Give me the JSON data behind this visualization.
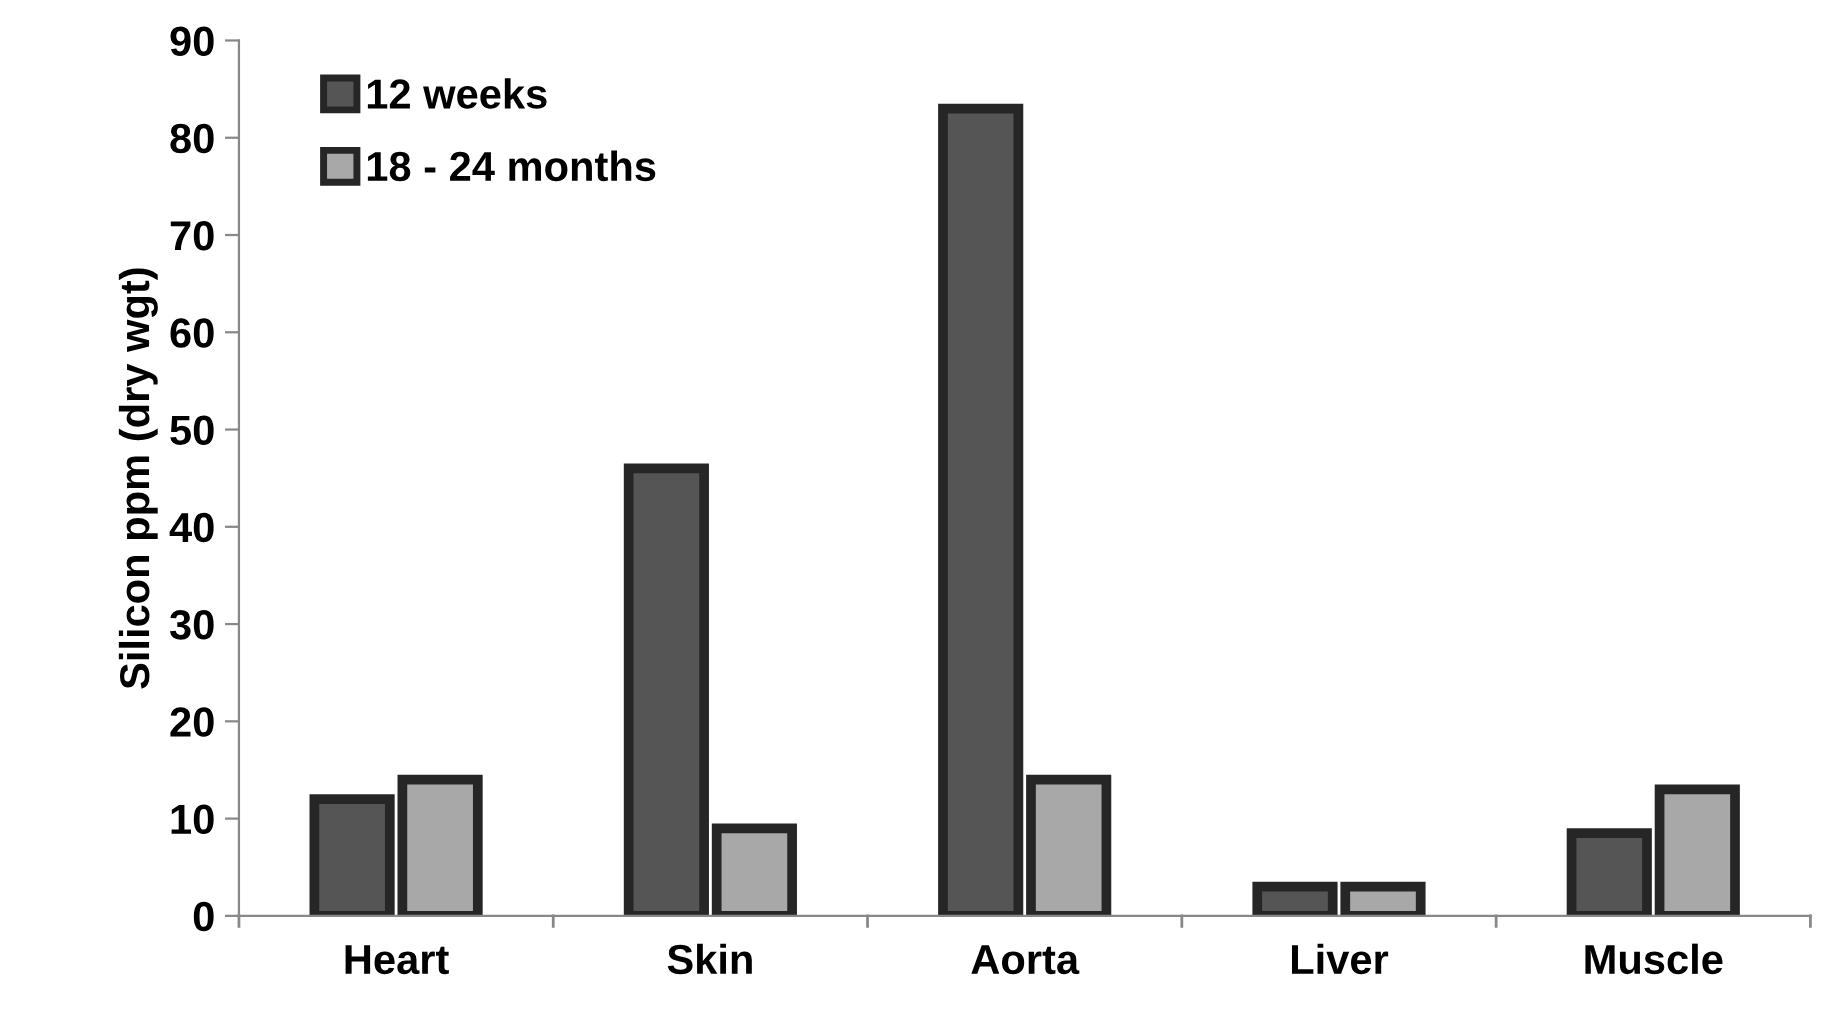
{
  "chart_data": {
    "type": "bar",
    "ylabel": "Silicon ppm (dry wgt)",
    "categories": [
      "Heart",
      "Skin",
      "Aorta",
      "Liver",
      "Muscle"
    ],
    "series": [
      {
        "name": "12 weeks",
        "color": "#555555",
        "values": [
          12,
          46,
          83,
          3,
          8.5
        ]
      },
      {
        "name": "18 - 24 months",
        "color": "#a8a8a8",
        "values": [
          14,
          9,
          14,
          3,
          13
        ]
      }
    ],
    "ylim": [
      0,
      90
    ],
    "yticks": [
      0,
      10,
      20,
      30,
      40,
      50,
      60,
      70,
      80,
      90
    ],
    "grid": false,
    "legend": "top left"
  }
}
